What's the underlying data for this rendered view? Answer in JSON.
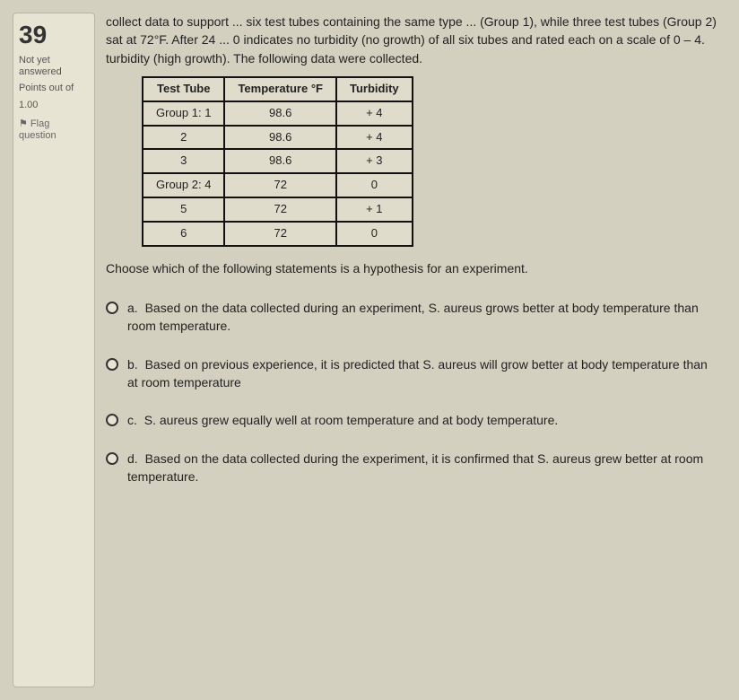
{
  "sidebar": {
    "question_number": "39",
    "status": "Not yet answered",
    "points_label": "Points out of",
    "points_value": "1.00",
    "flag_label": "⚑ Flag question"
  },
  "stem": {
    "text": "collect data to support ... six test tubes containing the same type ... (Group 1), while three test tubes (Group 2) sat at 72°F. After 24 ... 0 indicates no turbidity (no growth) of all six tubes and rated each on a scale of 0 – 4. turbidity (high growth). The following data were collected."
  },
  "table": {
    "headers": [
      "Test Tube",
      "Temperature °F",
      "Turbidity"
    ],
    "rows": [
      [
        "Group 1:  1",
        "98.6",
        "+ 4"
      ],
      [
        "2",
        "98.6",
        "+ 4"
      ],
      [
        "3",
        "98.6",
        "+ 3"
      ],
      [
        "Group 2:  4",
        "72",
        "0"
      ],
      [
        "5",
        "72",
        "+ 1"
      ],
      [
        "6",
        "72",
        "0"
      ]
    ]
  },
  "prompt": "Choose which of the following statements is a hypothesis for an experiment.",
  "options": [
    {
      "letter": "a.",
      "text": "Based on the data collected during an experiment, S. aureus grows better at body temperature than room temperature."
    },
    {
      "letter": "b.",
      "text": "Based on previous experience, it is predicted that S. aureus will grow better at body temperature than at room temperature"
    },
    {
      "letter": "c.",
      "text": "S. aureus grew equally well at room temperature and at body temperature."
    },
    {
      "letter": "d.",
      "text": "Based on the data collected during the experiment, it is confirmed that S. aureus grew better at room temperature."
    }
  ],
  "colors": {
    "page_bg": "#d4d0c0",
    "panel_bg": "#e8e4d4",
    "border": "#111111",
    "text": "#222222"
  }
}
